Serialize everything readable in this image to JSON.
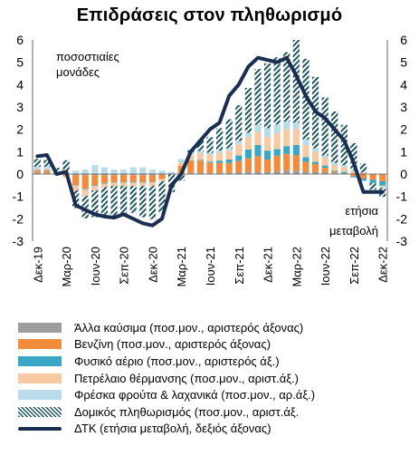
{
  "chart_data": {
    "type": "bar",
    "title": "Επιδράσεις στον πληθωρισμό",
    "left_axis_note": "ποσοστιαίες μονάδες",
    "right_axis_note": "ετήσια μεταβολή",
    "ylim": [
      -3,
      6
    ],
    "y_ticks": [
      -3,
      -2,
      -1,
      0,
      1,
      2,
      3,
      4,
      5,
      6
    ],
    "grid": false,
    "legend_position": "bottom",
    "x_tick_labels": [
      "Δεκ-19",
      "Μαρ-20",
      "Ιουν-20",
      "Σεπ-20",
      "Δεκ-20",
      "Μαρ-21",
      "Ιουν-21",
      "Σεπ-21",
      "Δεκ-21",
      "Μαρ-22",
      "Ιουν-22",
      "Σεπ-22",
      "Δεκ-22"
    ],
    "x_tick_index": [
      0,
      3,
      6,
      9,
      12,
      15,
      18,
      21,
      24,
      27,
      30,
      33,
      36
    ],
    "stacked_series": [
      {
        "name": "Άλλα καύσιμα (ποσ.μον., αριστερός άξονας)",
        "color": "#9e9e9e",
        "pattern": "solid",
        "values": [
          0.05,
          0.05,
          0,
          0.02,
          -0.05,
          -0.05,
          -0.05,
          -0.05,
          -0.05,
          -0.05,
          -0.05,
          -0.05,
          -0.05,
          -0.02,
          0,
          0.02,
          0.05,
          0.05,
          0.05,
          0.05,
          0.05,
          0.08,
          0.1,
          0.1,
          0.1,
          0.12,
          0.15,
          0.15,
          0.1,
          0.1,
          0.08,
          0.05,
          0.05,
          0.03,
          0.02,
          0,
          -0.02
        ]
      },
      {
        "name": "Βενζίνη (ποσ.μον., αριστερός άξονας)",
        "color": "#f28c3c",
        "pattern": "solid",
        "values": [
          0.1,
          0.1,
          0,
          -0.1,
          -0.45,
          -0.6,
          -0.45,
          -0.35,
          -0.3,
          -0.3,
          -0.3,
          -0.3,
          -0.3,
          -0.2,
          0,
          0.35,
          0.55,
          0.55,
          0.45,
          0.45,
          0.45,
          0.5,
          0.6,
          0.7,
          0.55,
          0.7,
          0.75,
          0.7,
          0.45,
          0.35,
          0.2,
          0.05,
          0,
          -0.1,
          -0.2,
          -0.25,
          -0.3
        ]
      },
      {
        "name": "Φυσικό αέριο (ποσ.μον., αριστερός άξ.)",
        "color": "#3aa8c4",
        "pattern": "solid",
        "values": [
          0.03,
          0.03,
          0.03,
          0,
          -0.02,
          -0.03,
          -0.03,
          -0.03,
          -0.03,
          -0.03,
          -0.03,
          -0.03,
          -0.02,
          0,
          0,
          0,
          0.02,
          0.03,
          0.05,
          0.1,
          0.15,
          0.25,
          0.4,
          0.5,
          0.4,
          0.3,
          0.35,
          0.45,
          0.2,
          0.1,
          0.1,
          0.05,
          0.05,
          -0.05,
          -0.1,
          -0.15,
          -0.2
        ]
      },
      {
        "name": "Πετρέλαιο θέρμανσης (ποσ.μον., αριστ.άξ.)",
        "color": "#f9c9a4",
        "pattern": "solid",
        "values": [
          0.05,
          0.05,
          0,
          -0.05,
          -0.2,
          -0.3,
          -0.2,
          -0.15,
          -0.15,
          -0.15,
          -0.15,
          -0.15,
          -0.15,
          -0.1,
          0,
          0.15,
          0.25,
          0.3,
          0.3,
          0.35,
          0.4,
          0.5,
          0.55,
          0.6,
          0.6,
          0.7,
          0.75,
          0.7,
          0.55,
          0.45,
          0.35,
          0.25,
          0.2,
          0.1,
          0.05,
          0,
          -0.05
        ]
      },
      {
        "name": "Φρέσκα φρούτα & λαχανικά (ποσ.μον., αρ.άξ.)",
        "color": "#b8dcea",
        "pattern": "solid",
        "values": [
          0.1,
          0.1,
          0.05,
          0.1,
          0.15,
          0.2,
          0.4,
          0.3,
          0.2,
          0.2,
          0.3,
          0.3,
          0.2,
          0.15,
          0.1,
          0.15,
          0.1,
          0.1,
          0.1,
          0.1,
          0.1,
          0.15,
          0.2,
          0.3,
          0.4,
          0.4,
          0.35,
          0.3,
          0.25,
          0.15,
          0.1,
          0.1,
          0.1,
          0.05,
          0,
          0,
          -0.05
        ]
      },
      {
        "name": "Δομικός πληθωρισμός (ποσ.μον., αριστ.άξ.",
        "color": "#1f5660",
        "pattern": "hatch",
        "values": [
          0.35,
          0.3,
          0.2,
          0.5,
          -0.8,
          -1.0,
          -1.2,
          -1.3,
          -1.4,
          -1.3,
          -1.2,
          -1.4,
          -1.5,
          -1.4,
          -0.8,
          -0.3,
          0.1,
          0.5,
          0.7,
          1.0,
          1.3,
          1.6,
          2.0,
          2.5,
          2.9,
          3.0,
          3.1,
          3.7,
          3.6,
          3.2,
          2.6,
          2.3,
          1.8,
          1.2,
          0.4,
          -0.3,
          -0.4
        ]
      }
    ],
    "line_series": {
      "name": "ΔΤΚ (ετήσια μεταβολή, δεξιός άξονας)",
      "color": "#1a2e52",
      "axis": "right",
      "values": [
        0.8,
        0.85,
        0,
        0.1,
        -1.4,
        -1.6,
        -1.8,
        -1.9,
        -1.95,
        -1.8,
        -2.0,
        -2.2,
        -2.3,
        -2.0,
        -0.5,
        0,
        1.0,
        1.5,
        2.0,
        2.3,
        3.5,
        4.0,
        4.8,
        5.2,
        5.1,
        5.0,
        5.2,
        4.4,
        3.5,
        2.8,
        2.5,
        2.0,
        1.5,
        0.5,
        -0.8,
        -0.8,
        -0.8
      ]
    }
  }
}
